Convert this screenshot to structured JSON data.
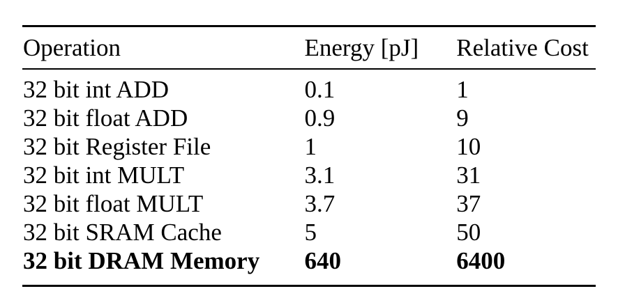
{
  "table": {
    "headers": [
      "Operation",
      "Energy [pJ]",
      "Relative Cost"
    ],
    "rows": [
      {
        "operation": "32 bit int ADD",
        "energy": "0.1",
        "cost": "1"
      },
      {
        "operation": "32 bit float ADD",
        "energy": "0.9",
        "cost": "9"
      },
      {
        "operation": "32 bit Register File",
        "energy": "1",
        "cost": "10"
      },
      {
        "operation": "32 bit int MULT",
        "energy": "3.1",
        "cost": "31"
      },
      {
        "operation": "32 bit float MULT",
        "energy": "3.7",
        "cost": "37"
      },
      {
        "operation": "32 bit SRAM Cache",
        "energy": "5",
        "cost": "50"
      },
      {
        "operation": "32 bit DRAM Memory",
        "energy": "640",
        "cost": "6400"
      }
    ]
  }
}
